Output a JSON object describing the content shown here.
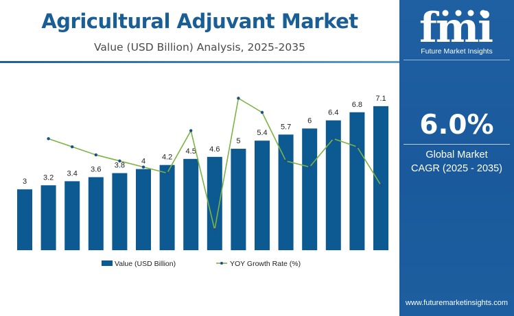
{
  "header": {
    "title": "Agricultural Adjuvant Market",
    "subtitle": "Value (USD Billion) Analysis, 2025-2035"
  },
  "brand": {
    "logo_text": "fmi",
    "logo_subtitle": "Future Market Insights",
    "website": "www.futuremarketinsights.com"
  },
  "cagr": {
    "value": "6.0%",
    "label_line1": "Global Market",
    "label_line2": "CAGR (2025 - 2035)"
  },
  "colors": {
    "bar": "#0d5a93",
    "line": "#7cb342",
    "title": "#1a5e96",
    "panel": "#1c5e9f"
  },
  "chart_data": {
    "type": "bar",
    "title": "Agricultural Adjuvant Market",
    "subtitle": "Value (USD Billion) Analysis, 2025-2035",
    "categories": [
      "",
      "",
      "",
      "",
      "",
      "",
      "",
      "",
      "",
      "",
      "",
      "",
      "",
      "",
      "",
      ""
    ],
    "series": [
      {
        "name": "Value (USD Billion)",
        "type": "bar",
        "values": [
          3,
          3.2,
          3.4,
          3.6,
          3.8,
          4,
          4.2,
          4.5,
          4.6,
          5,
          5.4,
          5.7,
          6,
          6.4,
          6.8,
          7.1
        ],
        "labels": [
          "3",
          "3.2",
          "3.4",
          "3.6",
          "3.8",
          "4",
          "4.2",
          "4.5",
          "4.6",
          "5",
          "5.4",
          "5.7",
          "6",
          "6.4",
          "6.8",
          "7.1"
        ]
      },
      {
        "name": "YOY Growth Rate (%)",
        "type": "line",
        "values": [
          null,
          6.7,
          6.3,
          5.9,
          5.6,
          5.3,
          5.0,
          7.1,
          2.2,
          8.7,
          8.0,
          5.6,
          5.3,
          6.7,
          6.3,
          4.4
        ]
      }
    ],
    "ylim": [
      0,
      7.4
    ],
    "growth_ylim": [
      0,
      10
    ],
    "grid": false,
    "legend_position": "bottom"
  }
}
